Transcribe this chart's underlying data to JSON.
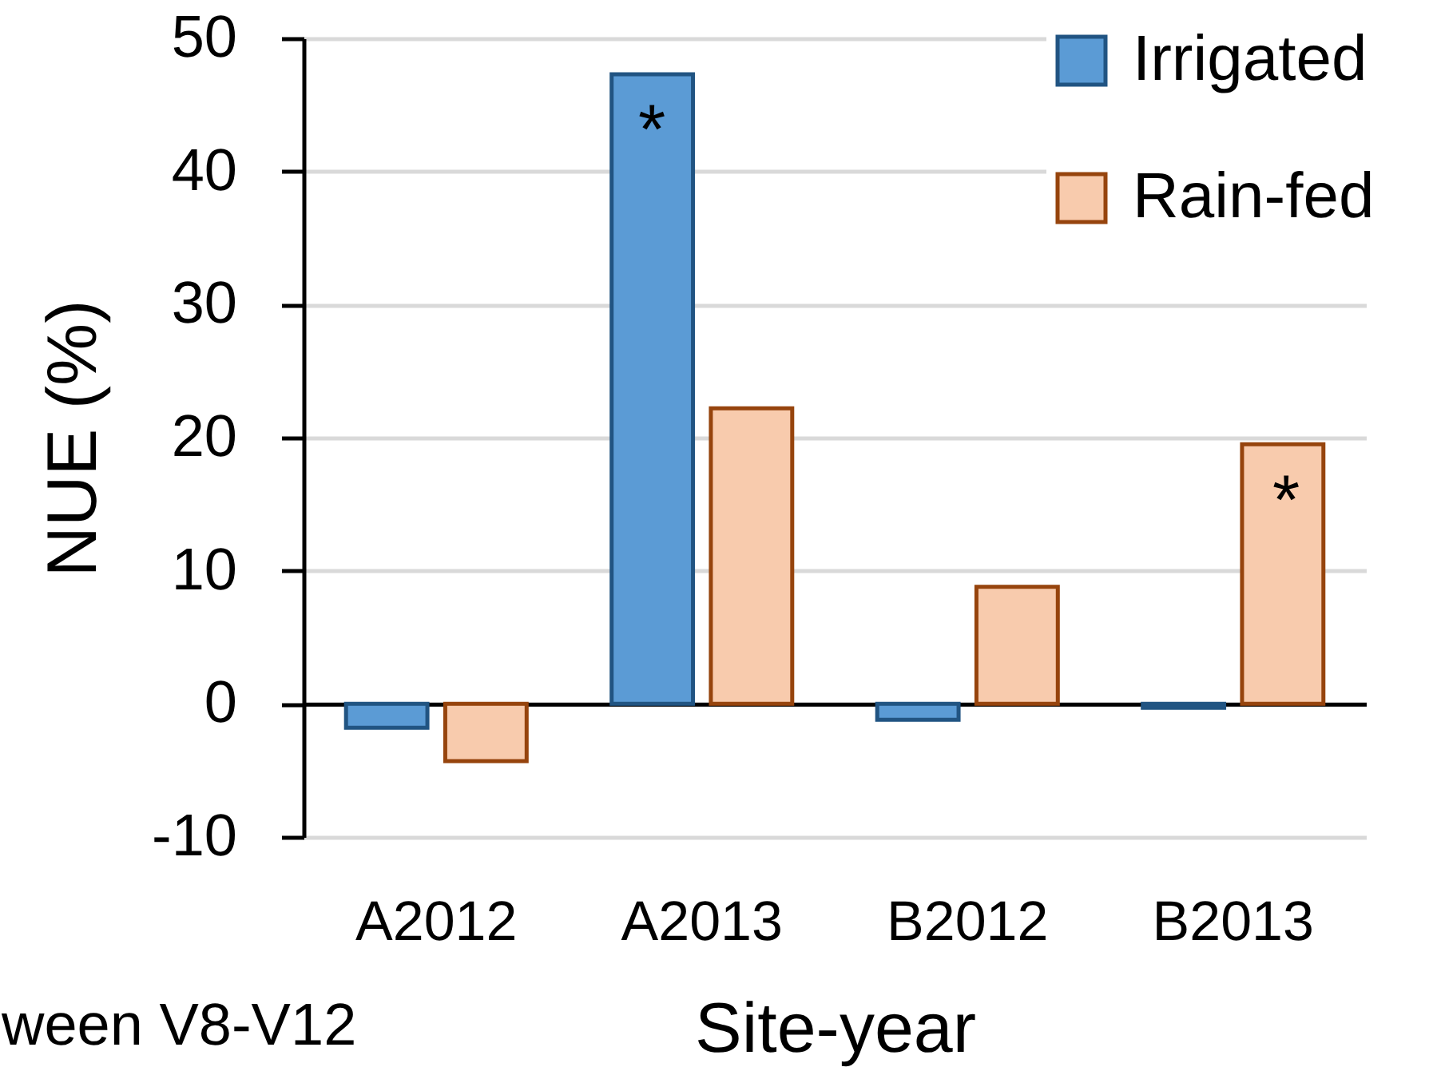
{
  "chart_data": {
    "type": "bar",
    "xlabel": "Site-year",
    "ylabel": "NUE (%)",
    "categories": [
      "A2012",
      "A2013",
      "B2012",
      "B2013"
    ],
    "series": [
      {
        "name": "Irrigated",
        "color": "#5b9bd5",
        "values": [
          -1.8,
          47.3,
          -1.2,
          -0.3
        ]
      },
      {
        "name": "Rain-fed",
        "color": "#f8cbad",
        "values": [
          -4.3,
          22.2,
          8.8,
          19.5
        ]
      }
    ],
    "ylim": [
      -10,
      50
    ],
    "yticks": [
      -10,
      0,
      10,
      20,
      30,
      40,
      50
    ],
    "grid": "y",
    "legend": "top right",
    "annotations": [
      "*",
      "*",
      "ween V8-V12"
    ]
  }
}
